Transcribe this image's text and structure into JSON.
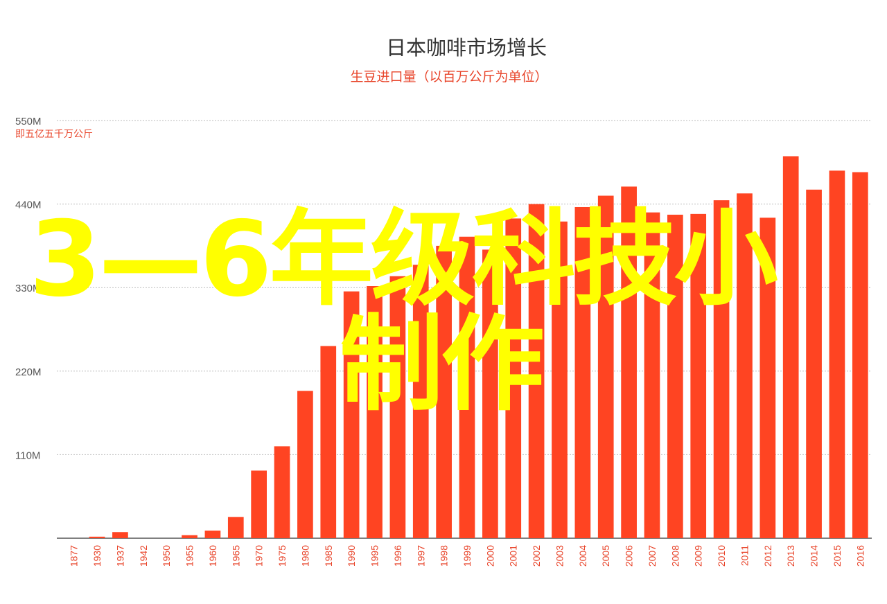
{
  "chart_data": {
    "type": "bar",
    "title": "日本咖啡市场增长",
    "subtitle": "生豆进口量（以百万公斤为单位）",
    "unit_note": "即五亿五千万公斤",
    "y_ticks": [
      "550M",
      "440M",
      "330M",
      "220M",
      "110M"
    ],
    "y_tick_values": [
      550,
      440,
      330,
      220,
      110
    ],
    "ylim": [
      0,
      550
    ],
    "grid": true,
    "categories": [
      "1877",
      "1930",
      "1937",
      "1942",
      "1950",
      "1955",
      "1960",
      "1965",
      "1970",
      "1975",
      "1980",
      "1985",
      "1990",
      "1995",
      "1996",
      "1997",
      "1998",
      "1999",
      "2000",
      "2001",
      "2002",
      "2003",
      "2004",
      "2005",
      "2006",
      "2007",
      "2008",
      "2009",
      "2010",
      "2011",
      "2012",
      "2013",
      "2014",
      "2015",
      "2016"
    ],
    "values": [
      0,
      2,
      8,
      0,
      0,
      4,
      10,
      28,
      89,
      121,
      194,
      253,
      325,
      332,
      345,
      360,
      385,
      397,
      380,
      421,
      440,
      417,
      436,
      451,
      463,
      429,
      426,
      427,
      445,
      454,
      422,
      503,
      459,
      484,
      482
    ],
    "colors": {
      "bar": "#ff4422",
      "grid": "#bbbbbb",
      "label": "#e8442a"
    }
  },
  "overlay": {
    "line1": "3—6年级科技小",
    "line2": "制作",
    "color": "#ffff00"
  }
}
